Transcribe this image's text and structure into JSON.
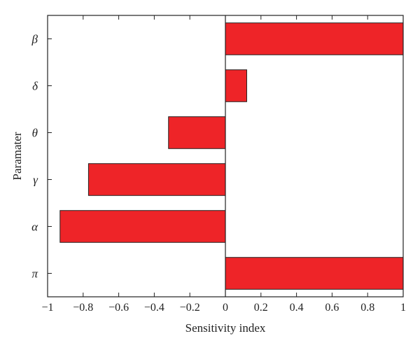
{
  "chart_data": {
    "type": "bar",
    "orientation": "horizontal",
    "categories": [
      "β",
      "δ",
      "θ",
      "γ",
      "α",
      "π"
    ],
    "values": [
      1,
      0.12,
      -0.32,
      -0.77,
      -0.93,
      1
    ],
    "xlabel": "Sensitivity index",
    "ylabel": "Paramater",
    "xlim": [
      -1,
      1
    ],
    "xticks": [
      -1,
      -0.8,
      -0.6,
      -0.4,
      -0.2,
      0,
      0.2,
      0.4,
      0.6,
      0.8,
      1
    ],
    "xtick_labels": [
      "−1",
      "−0.8",
      "−0.6",
      "−0.4",
      "−0.2",
      "0",
      "0.2",
      "0.4",
      "0.6",
      "0.8",
      "1"
    ],
    "grid": false,
    "legend": "none",
    "bar_color": "#ee2428"
  }
}
